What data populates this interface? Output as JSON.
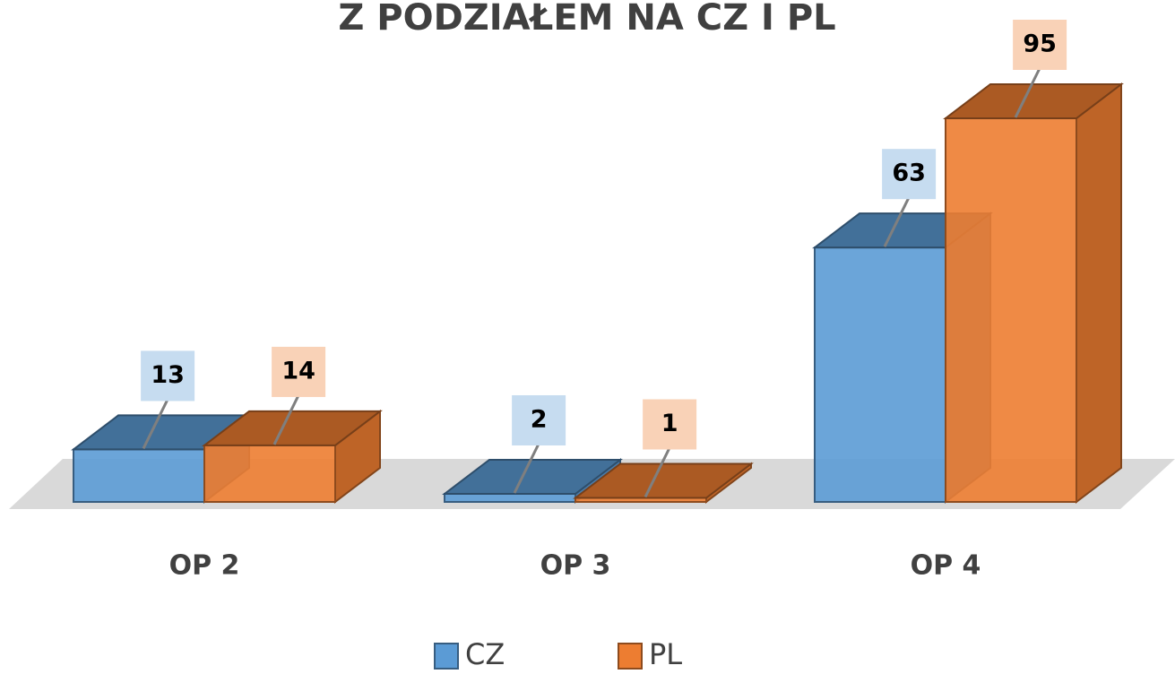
{
  "chart_data": {
    "type": "bar3d",
    "title": "Z PODZIAŁEM NA CZ I PL",
    "categories": [
      "OP 2",
      "OP 3",
      "OP 4"
    ],
    "series": [
      {
        "name": "CZ",
        "color": "#5b9bd5",
        "values": [
          13,
          2,
          63
        ]
      },
      {
        "name": "PL",
        "color": "#ed7d31",
        "values": [
          14,
          1,
          95
        ]
      }
    ],
    "legend": "bottom"
  }
}
